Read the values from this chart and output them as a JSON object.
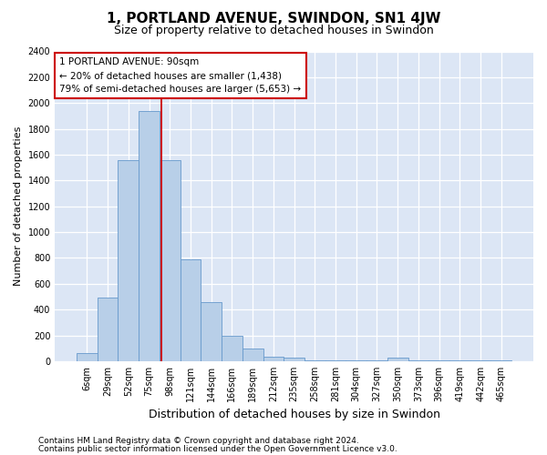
{
  "title": "1, PORTLAND AVENUE, SWINDON, SN1 4JW",
  "subtitle": "Size of property relative to detached houses in Swindon",
  "xlabel": "Distribution of detached houses by size in Swindon",
  "ylabel": "Number of detached properties",
  "bar_labels": [
    "6sqm",
    "29sqm",
    "52sqm",
    "75sqm",
    "98sqm",
    "121sqm",
    "144sqm",
    "166sqm",
    "189sqm",
    "212sqm",
    "235sqm",
    "258sqm",
    "281sqm",
    "304sqm",
    "327sqm",
    "350sqm",
    "373sqm",
    "396sqm",
    "419sqm",
    "442sqm",
    "465sqm"
  ],
  "bar_values": [
    60,
    490,
    1560,
    1940,
    1560,
    790,
    460,
    200,
    95,
    35,
    30,
    5,
    5,
    5,
    5,
    25,
    5,
    5,
    5,
    5,
    5
  ],
  "bar_color": "#b8cfe8",
  "bar_edge_color": "#6699cc",
  "background_color": "#dce6f5",
  "grid_color": "#ffffff",
  "ref_line_color": "#cc0000",
  "ref_line_x": 3.61,
  "annotation_text": "1 PORTLAND AVENUE: 90sqm\n← 20% of detached houses are smaller (1,438)\n79% of semi-detached houses are larger (5,653) →",
  "annotation_box_facecolor": "#ffffff",
  "annotation_box_edgecolor": "#cc0000",
  "ylim": [
    0,
    2400
  ],
  "yticks": [
    0,
    200,
    400,
    600,
    800,
    1000,
    1200,
    1400,
    1600,
    1800,
    2000,
    2200,
    2400
  ],
  "footer_line1": "Contains HM Land Registry data © Crown copyright and database right 2024.",
  "footer_line2": "Contains public sector information licensed under the Open Government Licence v3.0.",
  "fig_facecolor": "#ffffff",
  "title_fontsize": 11,
  "subtitle_fontsize": 9,
  "ylabel_fontsize": 8,
  "xlabel_fontsize": 9,
  "tick_fontsize": 7,
  "annotation_fontsize": 7.5,
  "footer_fontsize": 6.5
}
